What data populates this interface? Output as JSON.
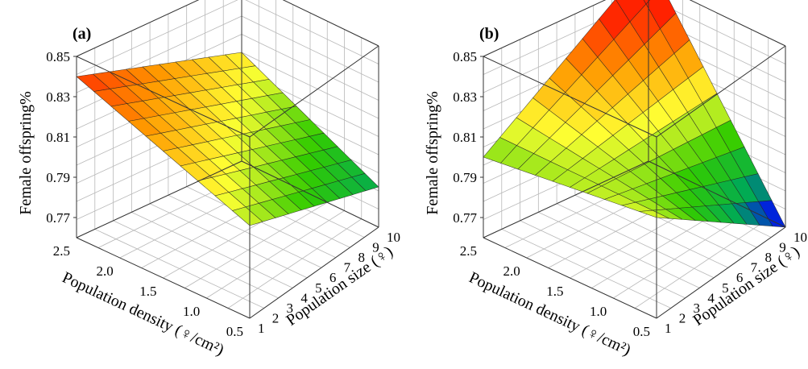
{
  "chart_data": [
    {
      "panel": "(a)",
      "type": "surface",
      "zlabel": "Female offspring%",
      "xlabel": "Population density (♀/cm²)",
      "ylabel": "Population size (♀)",
      "x_ticks": [
        "0.5",
        "1.0",
        "1.5",
        "2.0",
        "2.5"
      ],
      "y_ticks": [
        "1",
        "2",
        "3",
        "4",
        "5",
        "6",
        "7",
        "8",
        "9",
        "10"
      ],
      "z_ticks": [
        "0.77",
        "0.79",
        "0.81",
        "0.83",
        "0.85"
      ],
      "xlim": [
        0.5,
        2.5
      ],
      "ylim": [
        1,
        10
      ],
      "zlim": [
        0.76,
        0.85
      ],
      "corner_values": [
        {
          "x": 2.5,
          "y": 1,
          "z": 0.84
        },
        {
          "x": 0.5,
          "y": 1,
          "z": 0.806
        },
        {
          "x": 2.5,
          "y": 10,
          "z": 0.814
        },
        {
          "x": 0.5,
          "y": 10,
          "z": 0.78
        }
      ],
      "colormap": [
        "#0000ff",
        "#00aa55",
        "#33cc00",
        "#ffff33",
        "#ff9900",
        "#ff2200"
      ]
    },
    {
      "panel": "(b)",
      "type": "surface",
      "zlabel": "Female offspring%",
      "xlabel": "Population density (♀/cm²)",
      "ylabel": "Population size (♀)",
      "x_ticks": [
        "0.5",
        "1.0",
        "1.5",
        "2.0",
        "2.5"
      ],
      "y_ticks": [
        "1",
        "2",
        "3",
        "4",
        "5",
        "6",
        "7",
        "8",
        "9",
        "10"
      ],
      "z_ticks": [
        "0.77",
        "0.79",
        "0.81",
        "0.83",
        "0.85"
      ],
      "xlim": [
        0.5,
        2.5
      ],
      "ylim": [
        1,
        10
      ],
      "zlim": [
        0.76,
        0.85
      ],
      "corner_values": [
        {
          "x": 2.5,
          "y": 1,
          "z": 0.8
        },
        {
          "x": 0.5,
          "y": 1,
          "z": 0.81
        },
        {
          "x": 2.5,
          "y": 10,
          "z": 0.86
        },
        {
          "x": 0.5,
          "y": 10,
          "z": 0.76
        }
      ],
      "colormap": [
        "#0000ff",
        "#00aa55",
        "#33cc00",
        "#ffff33",
        "#ff9900",
        "#ff2200"
      ]
    }
  ]
}
